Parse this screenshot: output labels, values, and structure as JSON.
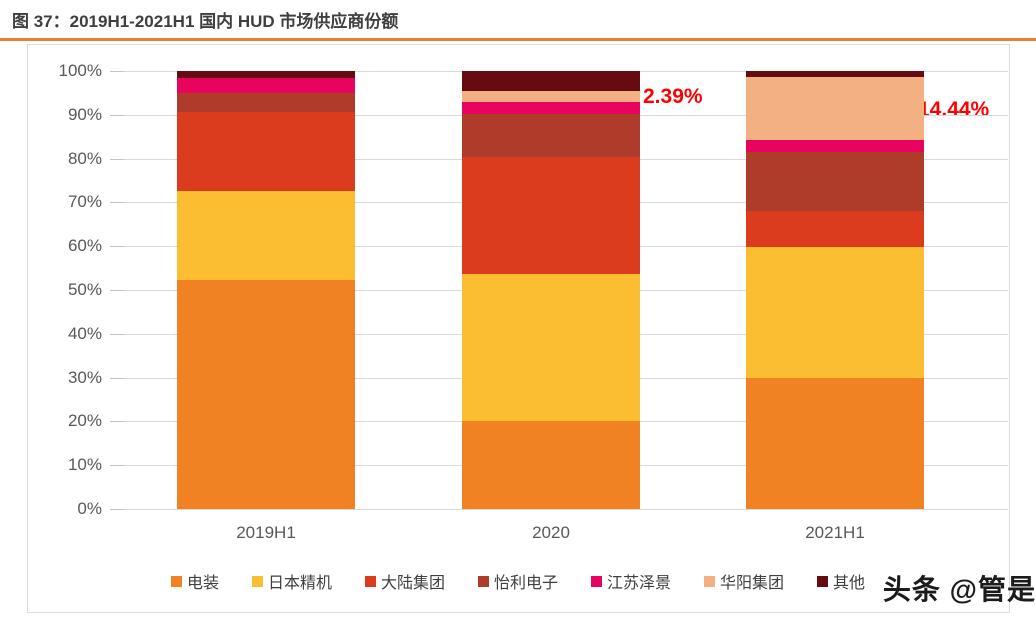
{
  "header": {
    "title": "图 37：2019H1-2021H1 国内 HUD 市场供应商份额"
  },
  "watermark": "头条 @管是",
  "colors": {
    "accent_rule": "#ED7D31",
    "title_text": "#3F3F3F",
    "axis_text": "#595959",
    "legend_text": "#404040",
    "grid_line": "#D9D9D9",
    "chart_border": "#DCDCDC",
    "annotation_red": "#FF0000",
    "watermark_text": "#1B1B1B"
  },
  "chart_data": {
    "type": "bar",
    "stacked": true,
    "unit": "%",
    "categories": [
      "2019H1",
      "2020",
      "2021H1"
    ],
    "series": [
      {
        "name": "电装",
        "color": "#F08223",
        "values": [
          52.2,
          20.2,
          29.8
        ]
      },
      {
        "name": "日本精机",
        "color": "#FBBD31",
        "values": [
          20.4,
          33.4,
          30.1
        ]
      },
      {
        "name": "大陆集团",
        "color": "#DC3C1E",
        "values": [
          18.0,
          26.7,
          8.2
        ]
      },
      {
        "name": "怡利电子",
        "color": "#AF3B2B",
        "values": [
          4.4,
          9.9,
          13.5
        ]
      },
      {
        "name": "江苏泽景",
        "color": "#E8035E",
        "values": [
          3.5,
          2.8,
          2.6
        ]
      },
      {
        "name": "华阳集团",
        "color": "#F3B183",
        "values": [
          0,
          2.39,
          14.44
        ]
      },
      {
        "name": "其他",
        "color": "#670B12",
        "values": [
          1.5,
          4.61,
          1.36
        ]
      }
    ],
    "yticks": [
      "100%",
      "90%",
      "80%",
      "70%",
      "60%",
      "50%",
      "40%",
      "30%",
      "20%",
      "10%",
      "0%"
    ],
    "ylim": [
      0,
      100
    ],
    "grid": true,
    "legend_position": "bottom",
    "annotations": [
      {
        "text": "2.39%",
        "series": "华阳集团",
        "category": "2020"
      },
      {
        "text": "14.44%",
        "series": "华阳集团",
        "category": "2021H1"
      }
    ]
  }
}
